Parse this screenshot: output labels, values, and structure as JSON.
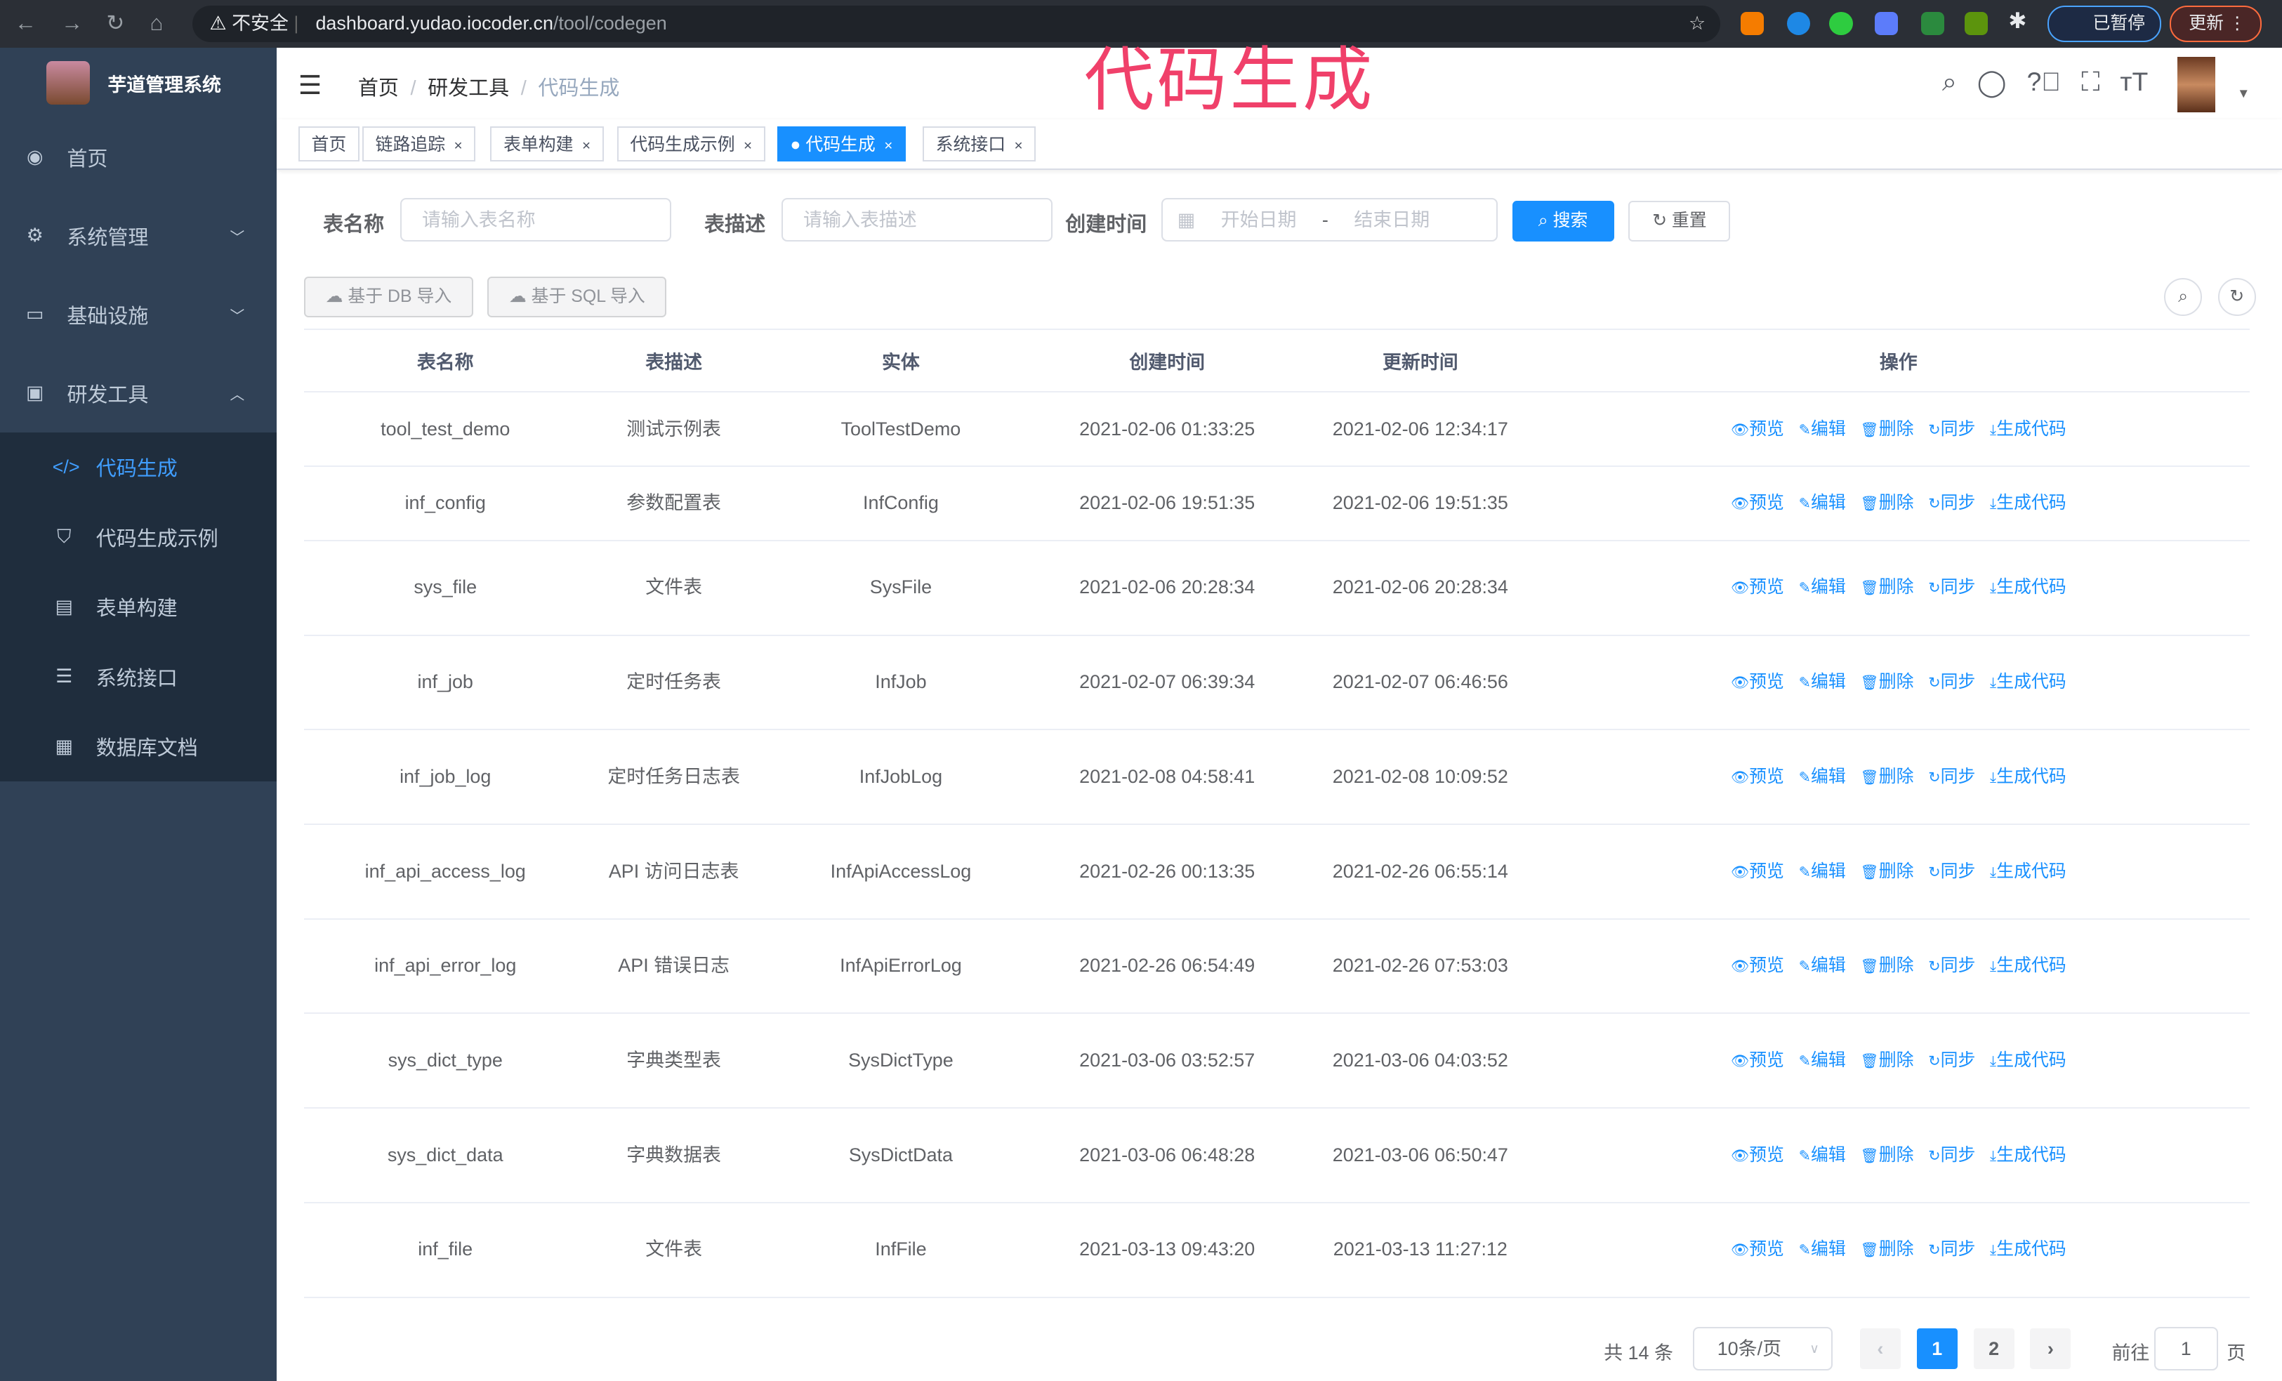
{
  "browser": {
    "security": "不安全",
    "url_host": "dashboard.yudao.iocoder.cn",
    "url_path": "/tool/codegen",
    "profile_label": "已暂停",
    "update_label": "更新"
  },
  "overlay_title": "代码生成",
  "sidebar": {
    "title": "芋道管理系统",
    "items": [
      {
        "label": "首页",
        "icon": "dashboard-icon"
      },
      {
        "label": "系统管理",
        "icon": "gear-icon"
      },
      {
        "label": "基础设施",
        "icon": "monitor-icon"
      },
      {
        "label": "研发工具",
        "icon": "toolbox-icon"
      }
    ],
    "sub_items": [
      {
        "label": "代码生成",
        "icon": "code-icon",
        "active": true
      },
      {
        "label": "代码生成示例",
        "icon": "shield-icon"
      },
      {
        "label": "表单构建",
        "icon": "form-icon"
      },
      {
        "label": "系统接口",
        "icon": "sliders-icon"
      },
      {
        "label": "数据库文档",
        "icon": "table-icon"
      }
    ]
  },
  "breadcrumb": [
    "首页",
    "研发工具",
    "代码生成"
  ],
  "tags": [
    "首页",
    "链路追踪",
    "表单构建",
    "代码生成示例",
    "代码生成",
    "系统接口"
  ],
  "active_tag": "代码生成",
  "search": {
    "table_name_label": "表名称",
    "table_name_placeholder": "请输入表名称",
    "table_desc_label": "表描述",
    "table_desc_placeholder": "请输入表描述",
    "created_label": "创建时间",
    "start_placeholder": "开始日期",
    "range_sep": "-",
    "end_placeholder": "结束日期",
    "search_btn": "搜索",
    "reset_btn": "重置"
  },
  "toolbar": {
    "import_db": "基于 DB 导入",
    "import_sql": "基于 SQL 导入"
  },
  "table": {
    "headers": [
      "表名称",
      "表描述",
      "实体",
      "创建时间",
      "更新时间",
      "操作"
    ],
    "actions": [
      "预览",
      "编辑",
      "删除",
      "同步",
      "生成代码"
    ],
    "rows": [
      [
        "tool_test_demo",
        "测试示例表",
        "ToolTestDemo",
        "2021-02-06 01:33:25",
        "2021-02-06 12:34:17"
      ],
      [
        "inf_config",
        "参数配置表",
        "InfConfig",
        "2021-02-06 19:51:35",
        "2021-02-06 19:51:35"
      ],
      [
        "sys_file",
        "文件表",
        "SysFile",
        "2021-02-06 20:28:34",
        "2021-02-06 20:28:34"
      ],
      [
        "inf_job",
        "定时任务表",
        "InfJob",
        "2021-02-07 06:39:34",
        "2021-02-07 06:46:56"
      ],
      [
        "inf_job_log",
        "定时任务日志表",
        "InfJobLog",
        "2021-02-08 04:58:41",
        "2021-02-08 10:09:52"
      ],
      [
        "inf_api_access_log",
        "API 访问日志表",
        "InfApiAccessLog",
        "2021-02-26 00:13:35",
        "2021-02-26 06:55:14"
      ],
      [
        "inf_api_error_log",
        "API 错误日志",
        "InfApiErrorLog",
        "2021-02-26 06:54:49",
        "2021-02-26 07:53:03"
      ],
      [
        "sys_dict_type",
        "字典类型表",
        "SysDictType",
        "2021-03-06 03:52:57",
        "2021-03-06 04:03:52"
      ],
      [
        "sys_dict_data",
        "字典数据表",
        "SysDictData",
        "2021-03-06 06:48:28",
        "2021-03-06 06:50:47"
      ],
      [
        "inf_file",
        "文件表",
        "InfFile",
        "2021-03-13 09:43:20",
        "2021-03-13 11:27:12"
      ]
    ]
  },
  "pagination": {
    "total": "共 14 条",
    "page_size": "10条/页",
    "pages": [
      "1",
      "2"
    ],
    "current": "1",
    "goto_label": "前往",
    "goto_value": "1",
    "page_suffix": "页"
  },
  "colors": {
    "primary": "#1890ff",
    "sidebar": "#304156",
    "overlay": "#f0406a"
  }
}
